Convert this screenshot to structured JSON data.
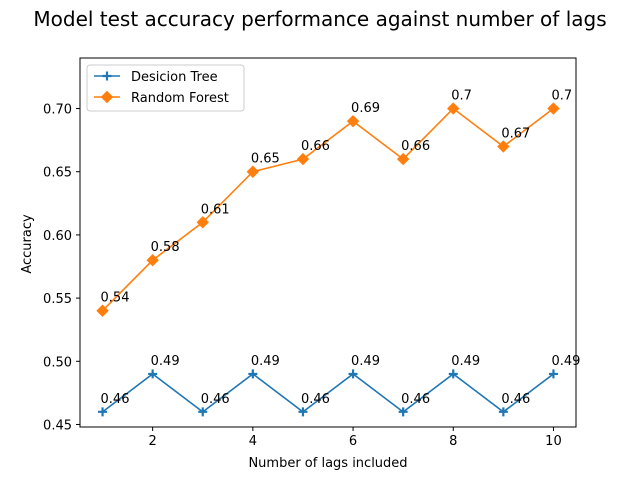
{
  "chart_data": {
    "type": "line",
    "title": "Model test accuracy performance against number of lags",
    "xlabel": "Number of lags included",
    "ylabel": "Accuracy",
    "x": [
      1,
      2,
      3,
      4,
      5,
      6,
      7,
      8,
      9,
      10
    ],
    "xlim": [
      0.55,
      10.45
    ],
    "ylim": [
      0.448,
      0.74
    ],
    "xticks": [
      2,
      4,
      6,
      8,
      10
    ],
    "yticks": [
      0.45,
      0.5,
      0.55,
      0.6,
      0.65,
      0.7
    ],
    "ytick_labels": [
      "0.45",
      "0.50",
      "0.55",
      "0.60",
      "0.65",
      "0.70"
    ],
    "grid": false,
    "legend_position": "top-left",
    "series": [
      {
        "name": "Desicion Tree",
        "color": "#1f77b4",
        "marker": "plus",
        "values": [
          0.46,
          0.49,
          0.46,
          0.49,
          0.46,
          0.49,
          0.46,
          0.49,
          0.46,
          0.49
        ],
        "labels": [
          "0.46",
          "0.49",
          "0.46",
          "0.49",
          "0.46",
          "0.49",
          "0.46",
          "0.49",
          "0.46",
          "0.49"
        ]
      },
      {
        "name": "Random Forest",
        "color": "#ff7f0e",
        "marker": "diamond",
        "values": [
          0.54,
          0.58,
          0.61,
          0.65,
          0.66,
          0.69,
          0.66,
          0.7,
          0.67,
          0.7
        ],
        "labels": [
          "0.54",
          "0.58",
          "0.61",
          "0.65",
          "0.66",
          "0.69",
          "0.66",
          "0.7",
          "0.67",
          "0.7"
        ]
      }
    ]
  }
}
